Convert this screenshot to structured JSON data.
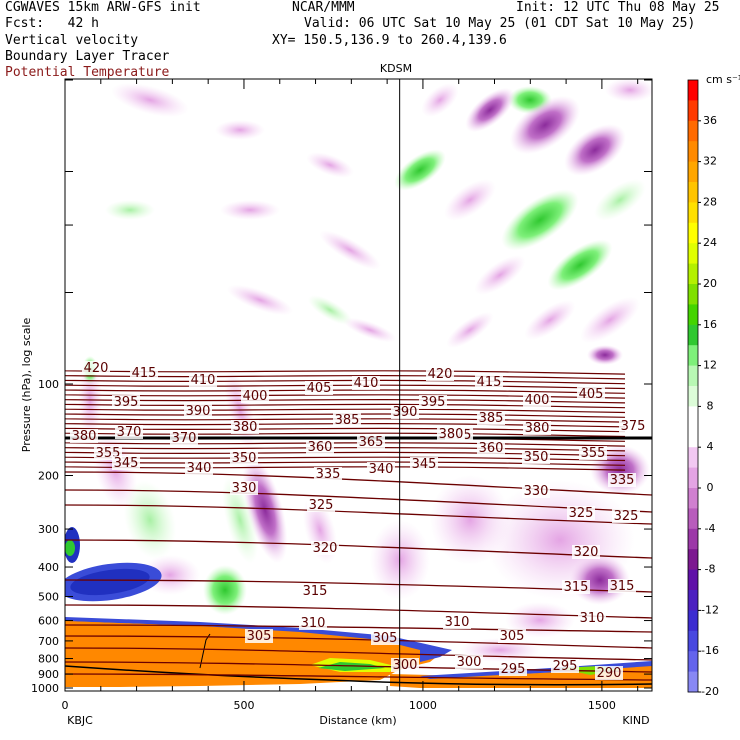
{
  "header": {
    "model": "CGWAVES 15km ARW-GFS init",
    "center": "NCAR/MMM",
    "init": "Init: 12 UTC Thu 08 May 25",
    "fcst": "Fcst:   42 h",
    "valid": "Valid: 06 UTC Sat 10 May 25 (01 CDT Sat 10 May 25)",
    "field1": "Vertical velocity",
    "field2": "Boundary Layer Tracer",
    "field3": "Potential Temperature",
    "xy": "XY= 150.5,136.9 to 260.4,139.6",
    "station_top": "KDSM",
    "left_station": "KBJC",
    "right_station": "KIND"
  },
  "colors": {
    "theta_contour": "#6b0000",
    "cross_line": "#000000"
  },
  "chart_data": {
    "type": "heatmap",
    "xlabel": "Distance (km)",
    "ylabel": "Pressure (hPa), log scale",
    "xlim": [
      0,
      1640
    ],
    "x_ticks": [
      0,
      500,
      1000,
      1500
    ],
    "y_ticks": [
      100,
      200,
      300,
      400,
      500,
      600,
      700,
      800,
      900,
      1000
    ],
    "y_scale": "log",
    "kdsm_distance_km": 935,
    "colorbar": {
      "unit": "cm s⁻¹",
      "labels": [
        "36",
        "32",
        "28",
        "24",
        "20",
        "16",
        "12",
        "8",
        "4",
        "0",
        "-4",
        "-8",
        "-12",
        "-16",
        "-20"
      ],
      "colors": [
        "#ff0000",
        "#ff3a00",
        "#ff6a00",
        "#ff8a00",
        "#ffa600",
        "#ffc400",
        "#ffe000",
        "#ffff00",
        "#e0ff00",
        "#b4f000",
        "#80e000",
        "#44d400",
        "#30c830",
        "#7ef07a",
        "#b8f8b4",
        "#dcfcd8",
        "#ffffff",
        "#ffffff",
        "#f2c8f2",
        "#e4a4e4",
        "#d080d0",
        "#b85cbc",
        "#9c38a8",
        "#7c1890",
        "#6010a8",
        "#4c20c0",
        "#3c2cd0",
        "#4848e0",
        "#6464ec",
        "#8888f4"
      ]
    },
    "theta_labels": [
      "420",
      "415",
      "410",
      "405",
      "410",
      "420",
      "415",
      "395",
      "390",
      "400",
      "385",
      "390",
      "395",
      "385",
      "400",
      "405",
      "380",
      "375",
      "370",
      "370",
      "375",
      "380",
      "355",
      "360",
      "365",
      "360",
      "350",
      "355",
      "345",
      "340",
      "350",
      "335",
      "340",
      "345",
      "330",
      "330",
      "335",
      "325",
      "325",
      "325",
      "320",
      "320",
      "315",
      "315",
      "315",
      "310",
      "310",
      "310",
      "305",
      "305",
      "305",
      "300",
      "300",
      "295",
      "295",
      "290",
      "380",
      "380"
    ]
  }
}
